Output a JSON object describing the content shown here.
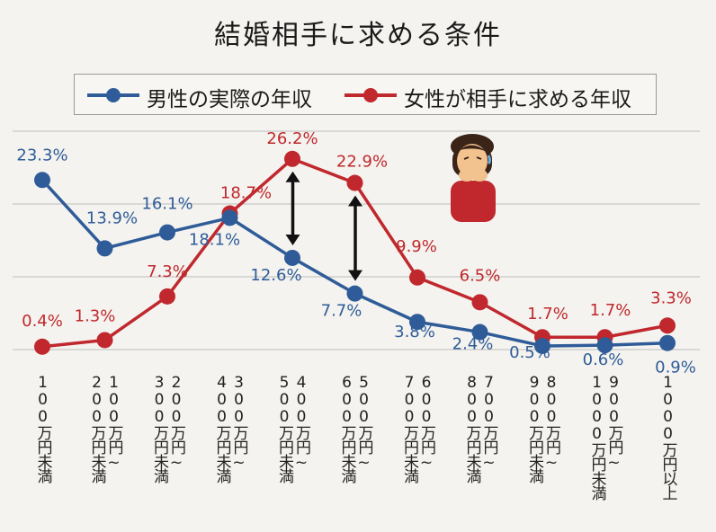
{
  "colors": {
    "male": "#2f5c98",
    "female": "#c0282d",
    "grid": "#c8c8c8",
    "arrow": "#111111"
  },
  "chart_data": {
    "type": "line",
    "title": "結婚相手に求める条件",
    "legend_position": "top",
    "categories": [
      [
        "100万円未満"
      ],
      [
        "200万円未満",
        "100万円~"
      ],
      [
        "300万円未満",
        "200万円~"
      ],
      [
        "400万円未満",
        "300万円~"
      ],
      [
        "500万円未満",
        "400万円~"
      ],
      [
        "600万円未満",
        "500万円~"
      ],
      [
        "700万円未満",
        "600万円~"
      ],
      [
        "800万円未満",
        "700万円~"
      ],
      [
        "900万円未満",
        "800万円~"
      ],
      [
        "1000万円未満",
        "900万円~"
      ],
      [
        "1000万円以上"
      ]
    ],
    "series": [
      {
        "name": "男性の実際の年収",
        "color": "#2f5c98",
        "values": [
          23.3,
          13.9,
          16.1,
          18.1,
          12.6,
          7.7,
          3.8,
          2.4,
          0.5,
          0.6,
          0.9
        ],
        "labels": [
          "23.3%",
          "13.9%",
          "16.1%",
          "18.1%",
          "12.6%",
          "7.7%",
          "3.8%",
          "2.4%",
          "0.5%",
          "0.6%",
          "0.9%"
        ]
      },
      {
        "name": "女性が相手に求める年収",
        "color": "#c0282d",
        "values": [
          0.4,
          1.3,
          7.3,
          18.7,
          26.2,
          22.9,
          9.9,
          6.5,
          1.7,
          1.7,
          3.3
        ],
        "labels": [
          "0.4%",
          "1.3%",
          "7.3%",
          "18.7%",
          "26.2%",
          "22.9%",
          "9.9%",
          "6.5%",
          "1.7%",
          "1.7%",
          "3.3%"
        ]
      }
    ],
    "ylim": [
      0,
      30
    ],
    "grid": true,
    "arrows_at": [
      4,
      5
    ]
  }
}
